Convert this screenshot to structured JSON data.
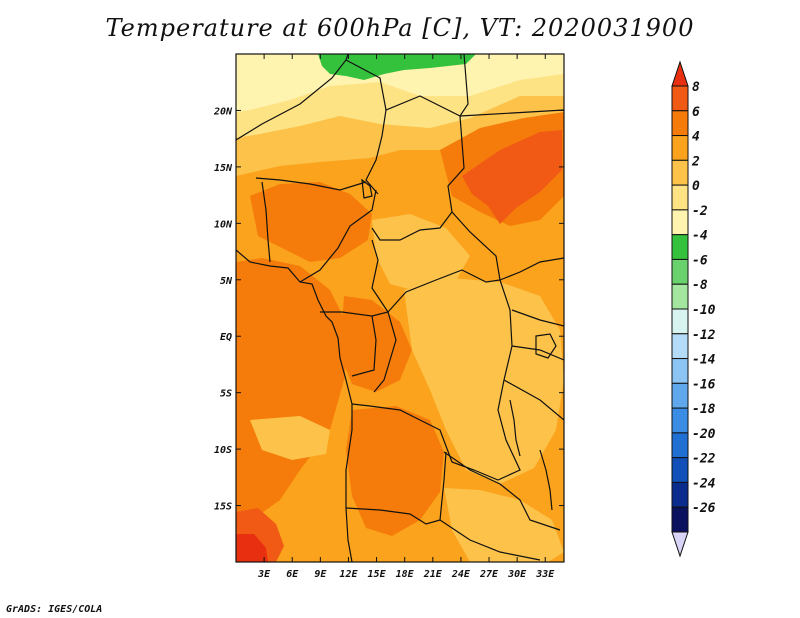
{
  "title": "Temperature at 600hPa [C], VT: 2020031900",
  "credit": "GrADS: IGES/COLA",
  "map": {
    "lon_range": [
      0,
      35
    ],
    "lat_range": [
      -20,
      25
    ],
    "lon_ticks": [
      "3E",
      "6E",
      "9E",
      "12E",
      "15E",
      "18E",
      "21E",
      "24E",
      "27E",
      "30E",
      "33E"
    ],
    "lat_ticks": [
      "20N",
      "15N",
      "10N",
      "5N",
      "EQ",
      "5S",
      "10S",
      "15S"
    ]
  },
  "colorbar": {
    "levels": [
      "8",
      "6",
      "4",
      "2",
      "0",
      "-2",
      "-4",
      "-6",
      "-8",
      "-10",
      "-12",
      "-14",
      "-16",
      "-18",
      "-20",
      "-22",
      "-24",
      "-26"
    ],
    "colors": [
      "#e83010",
      "#f05a14",
      "#f57c0a",
      "#fba31c",
      "#fcc24a",
      "#fde384",
      "#fff3b0",
      "#34c23c",
      "#6ad26c",
      "#a3e6a0",
      "#d8f4f0",
      "#b4dcf8",
      "#8cc4f4",
      "#5fa8ec",
      "#3a8ce4",
      "#2070d4",
      "#1050b8",
      "#0a2c8c",
      "#0a1260",
      "#d8d4f8"
    ]
  }
}
